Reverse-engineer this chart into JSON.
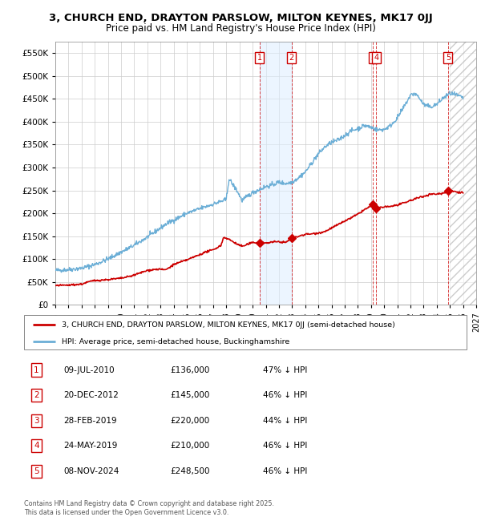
{
  "title": "3, CHURCH END, DRAYTON PARSLOW, MILTON KEYNES, MK17 0JJ",
  "subtitle": "Price paid vs. HM Land Registry's House Price Index (HPI)",
  "hpi_color": "#6baed6",
  "price_color": "#cc0000",
  "background_color": "#ffffff",
  "grid_color": "#cccccc",
  "transactions": [
    {
      "num": 1,
      "date": "09-JUL-2010",
      "date_x": 2010.52,
      "price": 136000,
      "pct": "47%"
    },
    {
      "num": 2,
      "date": "20-DEC-2012",
      "date_x": 2012.97,
      "price": 145000,
      "pct": "46%"
    },
    {
      "num": 3,
      "date": "28-FEB-2019",
      "date_x": 2019.16,
      "price": 220000,
      "pct": "44%"
    },
    {
      "num": 4,
      "date": "24-MAY-2019",
      "date_x": 2019.4,
      "price": 210000,
      "pct": "46%"
    },
    {
      "num": 5,
      "date": "08-NOV-2024",
      "date_x": 2024.86,
      "price": 248500,
      "pct": "46%"
    }
  ],
  "xmin": 1995.0,
  "xmax": 2027.0,
  "ymin": 0,
  "ymax": 575000,
  "yticks": [
    0,
    50000,
    100000,
    150000,
    200000,
    250000,
    300000,
    350000,
    400000,
    450000,
    500000,
    550000
  ],
  "xticks": [
    1995,
    1996,
    1997,
    1998,
    1999,
    2000,
    2001,
    2002,
    2003,
    2004,
    2005,
    2006,
    2007,
    2008,
    2009,
    2010,
    2011,
    2012,
    2013,
    2014,
    2015,
    2016,
    2017,
    2018,
    2019,
    2020,
    2021,
    2022,
    2023,
    2024,
    2025,
    2026,
    2027
  ],
  "legend_label_red": "3, CHURCH END, DRAYTON PARSLOW, MILTON KEYNES, MK17 0JJ (semi-detached house)",
  "legend_label_blue": "HPI: Average price, semi-detached house, Buckinghamshire",
  "footer": "Contains HM Land Registry data © Crown copyright and database right 2025.\nThis data is licensed under the Open Government Licence v3.0.",
  "hpi_anchors": [
    [
      1995.0,
      75000
    ],
    [
      1996.0,
      77000
    ],
    [
      1997.0,
      80000
    ],
    [
      1998.0,
      88000
    ],
    [
      1999.0,
      100000
    ],
    [
      2000.0,
      115000
    ],
    [
      2001.0,
      130000
    ],
    [
      2002.0,
      148000
    ],
    [
      2002.5,
      158000
    ],
    [
      2003.5,
      178000
    ],
    [
      2004.0,
      185000
    ],
    [
      2005.0,
      200000
    ],
    [
      2006.0,
      210000
    ],
    [
      2006.5,
      215000
    ],
    [
      2007.0,
      220000
    ],
    [
      2007.5,
      225000
    ],
    [
      2008.0,
      230000
    ],
    [
      2008.2,
      275000
    ],
    [
      2008.8,
      250000
    ],
    [
      2009.2,
      228000
    ],
    [
      2009.5,
      235000
    ],
    [
      2010.0,
      245000
    ],
    [
      2010.5,
      252000
    ],
    [
      2011.0,
      258000
    ],
    [
      2011.5,
      262000
    ],
    [
      2012.0,
      268000
    ],
    [
      2012.5,
      265000
    ],
    [
      2013.0,
      268000
    ],
    [
      2013.5,
      278000
    ],
    [
      2014.0,
      290000
    ],
    [
      2014.5,
      310000
    ],
    [
      2015.0,
      330000
    ],
    [
      2015.5,
      345000
    ],
    [
      2016.0,
      355000
    ],
    [
      2016.5,
      360000
    ],
    [
      2017.0,
      370000
    ],
    [
      2017.5,
      380000
    ],
    [
      2018.0,
      385000
    ],
    [
      2018.5,
      392000
    ],
    [
      2019.0,
      388000
    ],
    [
      2019.5,
      382000
    ],
    [
      2020.0,
      383000
    ],
    [
      2020.5,
      392000
    ],
    [
      2021.0,
      408000
    ],
    [
      2021.5,
      432000
    ],
    [
      2022.0,
      458000
    ],
    [
      2022.3,
      462000
    ],
    [
      2022.6,
      455000
    ],
    [
      2023.0,
      438000
    ],
    [
      2023.5,
      432000
    ],
    [
      2024.0,
      438000
    ],
    [
      2024.5,
      452000
    ],
    [
      2025.0,
      462000
    ],
    [
      2025.5,
      458000
    ],
    [
      2026.0,
      452000
    ]
  ],
  "price_anchors": [
    [
      1995.0,
      42000
    ],
    [
      1995.5,
      42500
    ],
    [
      1996.0,
      43000
    ],
    [
      1996.5,
      44000
    ],
    [
      1997.0,
      45000
    ],
    [
      1997.5,
      50000
    ],
    [
      1998.0,
      53000
    ],
    [
      1998.5,
      54000
    ],
    [
      1999.0,
      55000
    ],
    [
      1999.5,
      56500
    ],
    [
      2000.0,
      58000
    ],
    [
      2000.5,
      61000
    ],
    [
      2001.0,
      65000
    ],
    [
      2001.5,
      70000
    ],
    [
      2002.0,
      75000
    ],
    [
      2002.5,
      77000
    ],
    [
      2003.0,
      78000
    ],
    [
      2003.2,
      76000
    ],
    [
      2003.5,
      78000
    ],
    [
      2004.0,
      88000
    ],
    [
      2004.5,
      93000
    ],
    [
      2005.0,
      98000
    ],
    [
      2005.5,
      104000
    ],
    [
      2006.0,
      110000
    ],
    [
      2006.5,
      116000
    ],
    [
      2007.0,
      120000
    ],
    [
      2007.3,
      125000
    ],
    [
      2007.6,
      130000
    ],
    [
      2007.8,
      148000
    ],
    [
      2008.2,
      143000
    ],
    [
      2008.5,
      138000
    ],
    [
      2009.0,
      130000
    ],
    [
      2009.3,
      128000
    ],
    [
      2009.6,
      132000
    ],
    [
      2010.0,
      136000
    ],
    [
      2010.52,
      136000
    ],
    [
      2011.0,
      135000
    ],
    [
      2011.5,
      137000
    ],
    [
      2012.0,
      138000
    ],
    [
      2012.5,
      136000
    ],
    [
      2012.97,
      145000
    ],
    [
      2013.0,
      146000
    ],
    [
      2013.3,
      148000
    ],
    [
      2013.5,
      150000
    ],
    [
      2014.0,
      154000
    ],
    [
      2014.5,
      155000
    ],
    [
      2015.0,
      157000
    ],
    [
      2015.5,
      160000
    ],
    [
      2016.0,
      168000
    ],
    [
      2016.5,
      175000
    ],
    [
      2017.0,
      183000
    ],
    [
      2017.5,
      190000
    ],
    [
      2018.0,
      198000
    ],
    [
      2018.5,
      208000
    ],
    [
      2019.0,
      215000
    ],
    [
      2019.16,
      220000
    ],
    [
      2019.3,
      215000
    ],
    [
      2019.4,
      210000
    ],
    [
      2019.6,
      212000
    ],
    [
      2020.0,
      214000
    ],
    [
      2020.5,
      215000
    ],
    [
      2021.0,
      218000
    ],
    [
      2021.5,
      222000
    ],
    [
      2022.0,
      228000
    ],
    [
      2022.5,
      233000
    ],
    [
      2023.0,
      237000
    ],
    [
      2023.3,
      240000
    ],
    [
      2023.6,
      242000
    ],
    [
      2024.0,
      242000
    ],
    [
      2024.5,
      244000
    ],
    [
      2024.86,
      248500
    ],
    [
      2025.0,
      249000
    ],
    [
      2025.5,
      247000
    ],
    [
      2026.0,
      245000
    ]
  ]
}
